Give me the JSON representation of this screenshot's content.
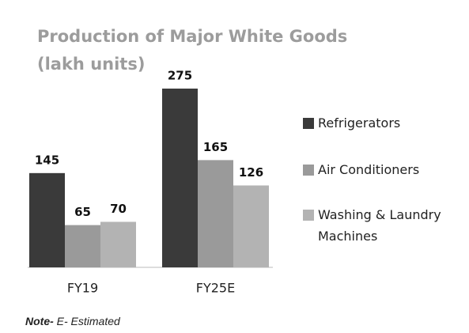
{
  "chart_data": {
    "type": "bar",
    "title": "Production of Major White Goods",
    "subtitle": "(lakh units)",
    "categories": [
      "FY19",
      "FY25E"
    ],
    "series": [
      {
        "name": "Refrigerators",
        "color": "#3a3a3a",
        "values": [
          145,
          275
        ]
      },
      {
        "name": "Air Conditioners",
        "color": "#9a9a9a",
        "values": [
          65,
          165
        ]
      },
      {
        "name": "Washing & Laundry Machines",
        "color": "#b3b3b3",
        "values": [
          70,
          126
        ]
      }
    ],
    "note_label": "Note-",
    "note_text": "E- Estimated"
  }
}
